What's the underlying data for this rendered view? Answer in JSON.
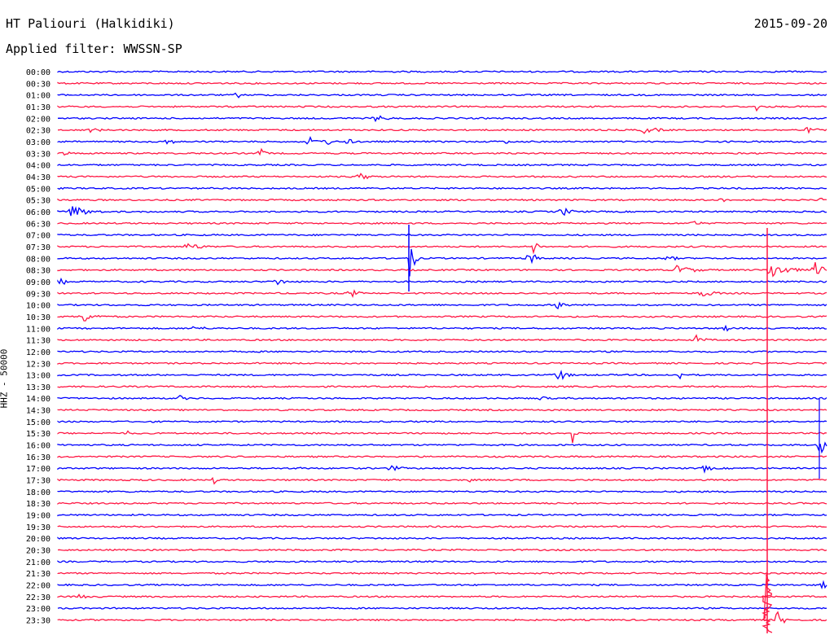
{
  "header": {
    "station": "HT Paliouri (Halkidiki)",
    "filter": "Applied filter: WWSSN-SP",
    "date": "2015-09-20"
  },
  "channel_label": "HHZ - 50000",
  "rows": [
    {
      "time": "00:00",
      "color": "blue"
    },
    {
      "time": "00:30",
      "color": "red"
    },
    {
      "time": "01:00",
      "color": "blue"
    },
    {
      "time": "01:30",
      "color": "red"
    },
    {
      "time": "02:00",
      "color": "blue"
    },
    {
      "time": "02:30",
      "color": "red"
    },
    {
      "time": "03:00",
      "color": "blue"
    },
    {
      "time": "03:30",
      "color": "red"
    },
    {
      "time": "04:00",
      "color": "blue"
    },
    {
      "time": "04:30",
      "color": "red"
    },
    {
      "time": "05:00",
      "color": "blue"
    },
    {
      "time": "05:30",
      "color": "red"
    },
    {
      "time": "06:00",
      "color": "blue"
    },
    {
      "time": "06:30",
      "color": "red"
    },
    {
      "time": "07:00",
      "color": "blue"
    },
    {
      "time": "07:30",
      "color": "red"
    },
    {
      "time": "08:00",
      "color": "blue"
    },
    {
      "time": "08:30",
      "color": "red"
    },
    {
      "time": "09:00",
      "color": "blue"
    },
    {
      "time": "09:30",
      "color": "red"
    },
    {
      "time": "10:00",
      "color": "blue"
    },
    {
      "time": "10:30",
      "color": "red"
    },
    {
      "time": "11:00",
      "color": "blue"
    },
    {
      "time": "11:30",
      "color": "red"
    },
    {
      "time": "12:00",
      "color": "blue"
    },
    {
      "time": "12:30",
      "color": "red"
    },
    {
      "time": "13:00",
      "color": "blue"
    },
    {
      "time": "13:30",
      "color": "red"
    },
    {
      "time": "14:00",
      "color": "blue"
    },
    {
      "time": "14:30",
      "color": "red"
    },
    {
      "time": "15:00",
      "color": "blue"
    },
    {
      "time": "15:30",
      "color": "red"
    },
    {
      "time": "16:00",
      "color": "blue"
    },
    {
      "time": "16:30",
      "color": "red"
    },
    {
      "time": "17:00",
      "color": "blue"
    },
    {
      "time": "17:30",
      "color": "red"
    },
    {
      "time": "18:00",
      "color": "blue"
    },
    {
      "time": "18:30",
      "color": "red"
    },
    {
      "time": "19:00",
      "color": "blue"
    },
    {
      "time": "19:30",
      "color": "red"
    },
    {
      "time": "20:00",
      "color": "blue"
    },
    {
      "time": "20:30",
      "color": "red"
    },
    {
      "time": "21:00",
      "color": "blue"
    },
    {
      "time": "21:30",
      "color": "red"
    },
    {
      "time": "22:00",
      "color": "blue"
    },
    {
      "time": "22:30",
      "color": "red"
    },
    {
      "time": "23:00",
      "color": "blue"
    },
    {
      "time": "23:30",
      "color": "red"
    }
  ],
  "colors": {
    "blue": "#0000ff",
    "red": "#ff1744",
    "background": "#ffffff",
    "text": "#000000"
  }
}
